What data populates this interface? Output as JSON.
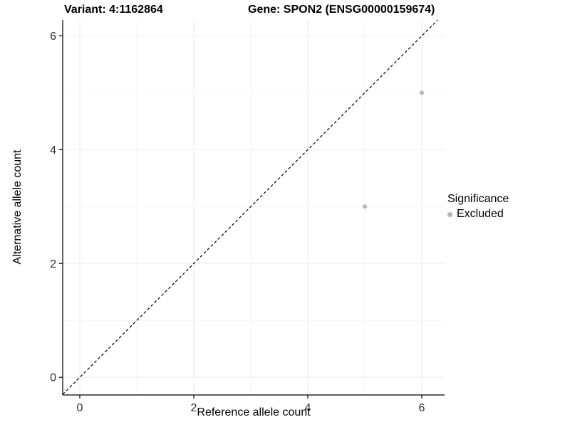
{
  "titles": {
    "variant": "Variant: 4:1162864",
    "gene": "Gene: SPON2 (ENSG00000159674)"
  },
  "chart_data": {
    "type": "scatter",
    "title": "Variant: 4:1162864  Gene: SPON2 (ENSG00000159674)",
    "xlabel": "Reference allele count",
    "ylabel": "Alternative allele count",
    "xlim": [
      -0.3,
      6.4
    ],
    "ylim": [
      -0.31,
      6.28
    ],
    "xticks": [
      0,
      2,
      4,
      6
    ],
    "yticks": [
      0,
      2,
      4,
      6
    ],
    "xticks_minor": [
      1,
      3,
      5
    ],
    "yticks_minor": [
      1,
      3,
      5
    ],
    "grid": "faint",
    "series": [
      {
        "name": "Excluded",
        "color": "#b5b5b5",
        "points": [
          {
            "x": 6,
            "y": 5
          },
          {
            "x": 5,
            "y": 3
          }
        ]
      }
    ],
    "reference_line": {
      "type": "identity",
      "style": "dashed",
      "color": "#000000"
    },
    "legend": {
      "title": "Significance",
      "position": "right",
      "items": [
        {
          "label": "Excluded",
          "color": "#b5b5b5"
        }
      ]
    }
  },
  "colors": {
    "point": "#b5b5b5",
    "axis": "#000000",
    "tick_label": "#303030",
    "grid_major": "#ededed",
    "grid_minor": "#f5f5f5"
  }
}
